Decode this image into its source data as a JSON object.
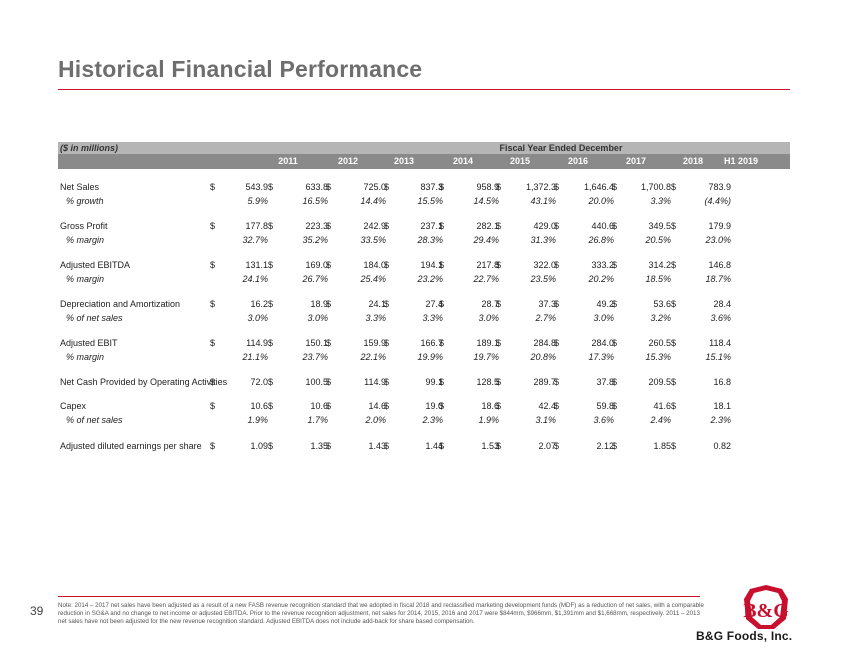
{
  "page": {
    "title": "Historical Financial Performance",
    "page_number": "39",
    "brand": "B&G Foods, Inc.",
    "note": "Note: 2014 – 2017 net sales have been adjusted as a result of a new FASB revenue recognition standard that we adopted in fiscal 2018 and reclassified marketing development funds (MDF) as a reduction of net sales, with a comparable reduction in SG&A and no change to net income or adjusted EBITDA. Prior to the revenue recognition adjustment, net sales for 2014, 2015, 2016 and 2017 were $844mm, $966mm, $1,391mm and $1,668mm, respectively. 2011 – 2013 net sales have not been adjusted for the new revenue recognition standard. Adjusted EBITDA does not include add-back for share based compensation."
  },
  "table": {
    "units_label": "($ in millions)",
    "period_header": "Fiscal Year Ended December",
    "years": [
      "2011",
      "2012",
      "2013",
      "2014",
      "2015",
      "2016",
      "2017",
      "2018",
      "H1 2019"
    ],
    "currency_symbol": "$",
    "rows": [
      {
        "label": "Net Sales",
        "dollar": true,
        "values": [
          "543.9",
          "633.8",
          "725.0",
          "837.3",
          "958.9",
          "1,372.3",
          "1,646.4",
          "1,700.8",
          "783.9"
        ]
      },
      {
        "label": "% growth",
        "sub": true,
        "values": [
          "5.9%",
          "16.5%",
          "14.4%",
          "15.5%",
          "14.5%",
          "43.1%",
          "20.0%",
          "3.3%",
          "(4.4%)"
        ]
      },
      {
        "label": "Gross Profit",
        "dollar": true,
        "values": [
          "177.8",
          "223.3",
          "242.9",
          "237.1",
          "282.1",
          "429.0",
          "440.6",
          "349.5",
          "179.9"
        ]
      },
      {
        "label": "% margin",
        "sub": true,
        "values": [
          "32.7%",
          "35.2%",
          "33.5%",
          "28.3%",
          "29.4%",
          "31.3%",
          "26.8%",
          "20.5%",
          "23.0%"
        ]
      },
      {
        "label": "Adjusted EBITDA",
        "dollar": true,
        "values": [
          "131.1",
          "169.0",
          "184.0",
          "194.1",
          "217.8",
          "322.0",
          "333.2",
          "314.2",
          "146.8"
        ]
      },
      {
        "label": "% margin",
        "sub": true,
        "values": [
          "24.1%",
          "26.7%",
          "25.4%",
          "23.2%",
          "22.7%",
          "23.5%",
          "20.2%",
          "18.5%",
          "18.7%"
        ]
      },
      {
        "label": "Depreciation and Amortization",
        "dollar": true,
        "values": [
          "16.2",
          "18.9",
          "24.1",
          "27.4",
          "28.7",
          "37.3",
          "49.2",
          "53.6",
          "28.4"
        ]
      },
      {
        "label": "% of net sales",
        "sub": true,
        "values": [
          "3.0%",
          "3.0%",
          "3.3%",
          "3.3%",
          "3.0%",
          "2.7%",
          "3.0%",
          "3.2%",
          "3.6%"
        ]
      },
      {
        "label": "Adjusted EBIT",
        "dollar": true,
        "values": [
          "114.9",
          "150.1",
          "159.9",
          "166.7",
          "189.1",
          "284.8",
          "284.0",
          "260.5",
          "118.4"
        ]
      },
      {
        "label": "% margin",
        "sub": true,
        "values": [
          "21.1%",
          "23.7%",
          "22.1%",
          "19.9%",
          "19.7%",
          "20.8%",
          "17.3%",
          "15.3%",
          "15.1%"
        ]
      },
      {
        "label": "Net Cash Provided by Operating Activities",
        "dollar": true,
        "values": [
          "72.0",
          "100.5",
          "114.9",
          "99.1",
          "128.5",
          "289.7",
          "37.8",
          "209.5",
          "16.8"
        ]
      },
      {
        "label": "Capex",
        "dollar": true,
        "values": [
          "10.6",
          "10.6",
          "14.6",
          "19.0",
          "18.6",
          "42.4",
          "59.8",
          "41.6",
          "18.1"
        ]
      },
      {
        "label": "% of net sales",
        "sub": true,
        "values": [
          "1.9%",
          "1.7%",
          "2.0%",
          "2.3%",
          "1.9%",
          "3.1%",
          "3.6%",
          "2.4%",
          "2.3%"
        ]
      },
      {
        "label": "Adjusted diluted earnings per share",
        "dollar": true,
        "values": [
          "1.09",
          "1.35",
          "1.43",
          "1.44",
          "1.53",
          "2.07",
          "2.12",
          "1.85",
          "0.82"
        ]
      }
    ]
  },
  "colors": {
    "accent": "#c8102e",
    "header_light": "#b5b5b5",
    "header_dark": "#8a8a8a"
  },
  "icons": {
    "logo": "bg-foods-logo"
  }
}
